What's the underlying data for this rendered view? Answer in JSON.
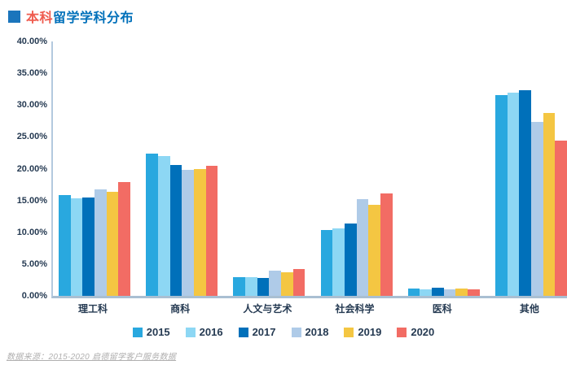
{
  "header": {
    "title_prefix": "本科",
    "title_rest": "留学学科分布",
    "title_full": "本科留学学科分布"
  },
  "colors": {
    "title_square": "#1b75bc",
    "title_prefix_text": "#ef5b4e",
    "title_rest_text": "#0070ba",
    "axis_text": "#253a52",
    "y_axis_line": "#b3c9de",
    "baseline": "#a9bfd2",
    "footer_text": "#b0afaf"
  },
  "chart_data": {
    "type": "bar",
    "title": "本科留学学科分布",
    "categories": [
      "理工科",
      "商科",
      "人文与艺术",
      "社会科学",
      "医科",
      "其他"
    ],
    "series": [
      {
        "name": "2015",
        "color": "#29a8df",
        "values": [
          15.9,
          22.4,
          2.9,
          10.4,
          1.2,
          31.6
        ]
      },
      {
        "name": "2016",
        "color": "#8dd7f4",
        "values": [
          15.3,
          22.0,
          3.0,
          10.6,
          1.0,
          32.0
        ]
      },
      {
        "name": "2017",
        "color": "#0070ba",
        "values": [
          15.5,
          20.6,
          2.8,
          11.4,
          1.3,
          32.3
        ]
      },
      {
        "name": "2018",
        "color": "#afcbe8",
        "values": [
          16.7,
          19.8,
          4.0,
          15.2,
          1.0,
          27.3
        ]
      },
      {
        "name": "2019",
        "color": "#f4c642",
        "values": [
          16.3,
          19.9,
          3.7,
          14.3,
          1.1,
          28.7
        ]
      },
      {
        "name": "2020",
        "color": "#f26c64",
        "values": [
          17.9,
          20.5,
          4.2,
          16.1,
          1.0,
          24.4
        ]
      }
    ],
    "xlabel": "",
    "ylabel": "",
    "ylim": [
      0,
      40
    ],
    "ytick_step": 5,
    "ytick_labels": [
      "0.00%",
      "5.00%",
      "10.00%",
      "15.00%",
      "20.00%",
      "25.00%",
      "30.00%",
      "35.00%",
      "40.00%"
    ],
    "grid": false,
    "legend_position": "bottom"
  },
  "footer": {
    "source_text": "数据来源：2015-2020 启德留学客户服务数据"
  }
}
